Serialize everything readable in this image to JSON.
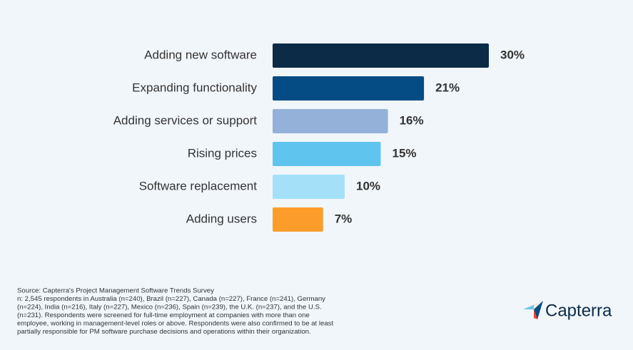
{
  "chart_data": {
    "type": "bar",
    "orientation": "horizontal",
    "categories": [
      "Adding new software",
      "Expanding functionality",
      "Adding services or support",
      "Rising prices",
      "Software replacement",
      "Adding users"
    ],
    "values": [
      30,
      21,
      16,
      15,
      10,
      7
    ],
    "value_labels": [
      "30%",
      "21%",
      "16%",
      "15%",
      "10%",
      "7%"
    ],
    "colors": [
      "#0c2b47",
      "#044c83",
      "#94b1d9",
      "#5fc5ee",
      "#a4e1f9",
      "#fc9d2b"
    ]
  },
  "source_lines": [
    "Source: Capterra's Project Management Software Trends Survey",
    "n: 2,545 respondents in Australia (n=240), Brazil (n=227), Canada (n=227), France (n=241), Germany",
    "(n=224), India (n=216), Italy (n=227), Mexico (n=236), Spain (n=239), the U.K. (n=237), and the U.S.",
    "(n=231). Respondents were screened for full-time employment at companies with more than one",
    "employee, working in management-level roles or above. Respondents were also confirmed to be at least",
    "partially responsible for PM software purchase decisions and operations within their organization."
  ],
  "logo": "Capterra"
}
